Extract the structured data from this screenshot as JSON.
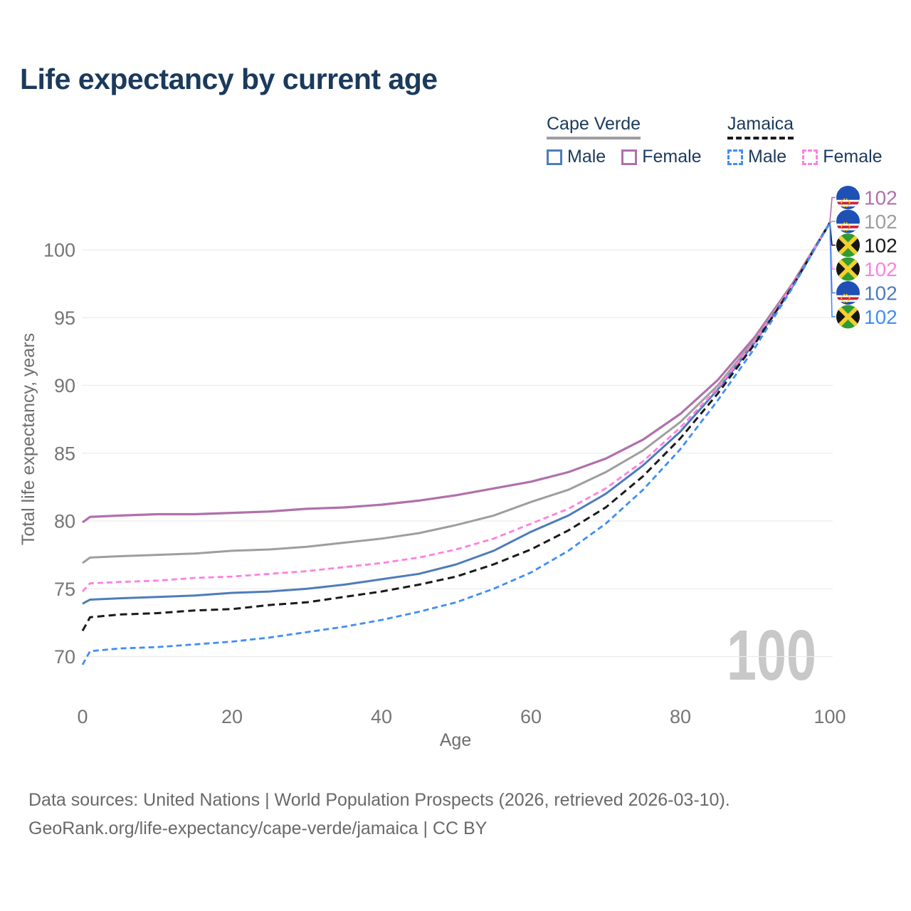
{
  "header": {
    "title": "Life expectancy by current age"
  },
  "legend": {
    "groups": [
      {
        "label": "Cape Verde",
        "line_style": "solid",
        "line_color": "#9e9e9e",
        "items": [
          {
            "label": "Male",
            "color": "#4d7cba"
          },
          {
            "label": "Female",
            "color": "#b070ab"
          }
        ]
      },
      {
        "label": "Jamaica",
        "line_style": "dashed",
        "line_color": "#1a1a1a",
        "items": [
          {
            "label": "Male",
            "color": "#418df6"
          },
          {
            "label": "Female",
            "color": "#ff80e0"
          }
        ]
      }
    ]
  },
  "chart_data": {
    "type": "line",
    "title": "Life expectancy by current age",
    "xlabel": "Age",
    "ylabel": "Total life expectancy, years",
    "xlim": [
      0,
      100
    ],
    "ylim": [
      68,
      103
    ],
    "xticks": [
      0,
      20,
      40,
      60,
      80,
      100
    ],
    "yticks": [
      70,
      75,
      80,
      85,
      90,
      95,
      100
    ],
    "grid": "horizontal-only",
    "legend_position": "top-right",
    "watermark_age_counter": "100",
    "x": [
      0,
      1,
      5,
      10,
      15,
      20,
      25,
      30,
      35,
      40,
      45,
      50,
      55,
      60,
      65,
      70,
      75,
      80,
      85,
      90,
      95,
      100
    ],
    "series": [
      {
        "id": "cape-verde-female",
        "name": "Cape Verde Female",
        "country": "Cape Verde",
        "sex": "Female",
        "color": "#b070ab",
        "dash": null,
        "stroke_width": 3.2,
        "flag": "cv",
        "flag_name": "cape-verde-flag",
        "label_slot": 0,
        "end_value": "102",
        "values": [
          79.9,
          80.3,
          80.4,
          80.5,
          80.5,
          80.6,
          80.7,
          80.9,
          81.0,
          81.2,
          81.5,
          81.9,
          82.4,
          82.9,
          83.6,
          84.6,
          86.0,
          87.9,
          90.4,
          93.6,
          97.5,
          102
        ]
      },
      {
        "id": "cape-verde-all",
        "name": "Cape Verde (both sexes)",
        "country": "Cape Verde",
        "sex": "All",
        "color": "#9e9e9e",
        "dash": null,
        "stroke_width": 3.0,
        "flag": "cv",
        "flag_name": "cape-verde-flag",
        "label_slot": 1,
        "end_value": "102",
        "values": [
          76.9,
          77.3,
          77.4,
          77.5,
          77.6,
          77.8,
          77.9,
          78.1,
          78.4,
          78.7,
          79.1,
          79.7,
          80.4,
          81.4,
          82.3,
          83.6,
          85.2,
          87.3,
          90.0,
          93.4,
          97.4,
          102
        ]
      },
      {
        "id": "cape-verde-male",
        "name": "Cape Verde Male",
        "country": "Cape Verde",
        "sex": "Male",
        "color": "#4d7cba",
        "dash": null,
        "stroke_width": 3.0,
        "flag": "cv",
        "flag_name": "cape-verde-flag",
        "label_slot": 4,
        "end_value": "102",
        "values": [
          73.9,
          74.2,
          74.3,
          74.4,
          74.5,
          74.7,
          74.8,
          75.0,
          75.3,
          75.7,
          76.1,
          76.8,
          77.8,
          79.2,
          80.4,
          82.0,
          84.1,
          86.6,
          89.7,
          93.2,
          97.3,
          102
        ]
      },
      {
        "id": "jamaica-female",
        "name": "Jamaica Female",
        "country": "Jamaica",
        "sex": "Female",
        "color": "#ff80e0",
        "dash": "8 5",
        "stroke_width": 2.8,
        "flag": "jm",
        "flag_name": "jamaica-flag",
        "label_slot": 3,
        "end_value": "102",
        "values": [
          74.8,
          75.4,
          75.5,
          75.6,
          75.8,
          75.9,
          76.1,
          76.3,
          76.6,
          76.9,
          77.3,
          77.9,
          78.7,
          79.8,
          80.9,
          82.4,
          84.4,
          86.9,
          89.8,
          93.3,
          97.4,
          102
        ]
      },
      {
        "id": "jamaica-all",
        "name": "Jamaica (both sexes)",
        "country": "Jamaica",
        "sex": "All",
        "color": "#1a1a1a",
        "dash": "10 6",
        "stroke_width": 3.0,
        "flag": "jm",
        "flag_name": "jamaica-flag",
        "label_slot": 2,
        "end_value": "102",
        "values": [
          71.9,
          72.9,
          73.1,
          73.2,
          73.4,
          73.5,
          73.8,
          74.0,
          74.4,
          74.8,
          75.3,
          75.9,
          76.8,
          77.9,
          79.3,
          81.0,
          83.3,
          86.1,
          89.4,
          93.1,
          97.3,
          102
        ]
      },
      {
        "id": "jamaica-male",
        "name": "Jamaica Male",
        "country": "Jamaica",
        "sex": "Male",
        "color": "#418df6",
        "dash": "8 5",
        "stroke_width": 2.8,
        "flag": "jm",
        "flag_name": "jamaica-flag",
        "label_slot": 5,
        "end_value": "102",
        "values": [
          69.4,
          70.4,
          70.6,
          70.7,
          70.9,
          71.1,
          71.4,
          71.8,
          72.2,
          72.7,
          73.3,
          74.0,
          75.0,
          76.2,
          77.8,
          79.8,
          82.3,
          85.3,
          88.9,
          92.8,
          97.2,
          102
        ]
      }
    ]
  },
  "footer": {
    "line1": "Data sources: United Nations | World Population Prospects (2026, retrieved 2026-03-10).",
    "line2": "GeoRank.org/life-expectancy/cape-verde/jamaica | CC BY"
  }
}
